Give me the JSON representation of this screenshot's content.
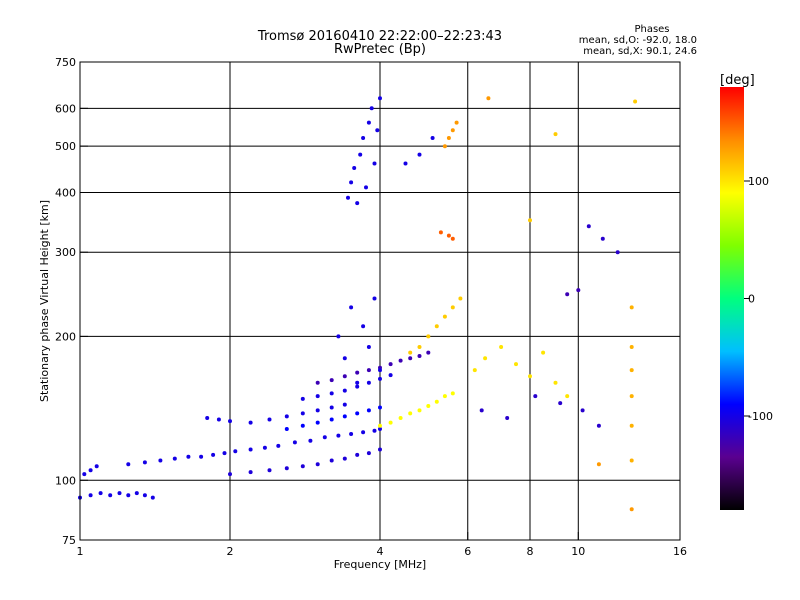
{
  "chart_data": {
    "type": "scatter",
    "title": "Tromsø 20160410 22:22:00–22:23:43",
    "subtitle": "RwPretec (Bp)",
    "stats": {
      "heading": "Phases",
      "line_o": "mean, sd,O:  -92.0, 18.0",
      "line_x": "mean, sd,X:  90.1, 24.6"
    },
    "xlabel": "Frequency [MHz]",
    "ylabel": "Stationary phase Virtual Height [km]",
    "xscale": "log",
    "yscale": "log",
    "xlim": [
      1,
      16
    ],
    "ylim": [
      75,
      750
    ],
    "xticks": [
      1,
      2,
      4,
      6,
      8,
      10,
      16
    ],
    "yticks": [
      75,
      100,
      200,
      300,
      400,
      500,
      600,
      750
    ],
    "x_gridlines": [
      2,
      4,
      6,
      8,
      10
    ],
    "y_gridlines": [
      100,
      200,
      300,
      400,
      500,
      600
    ],
    "grid": true,
    "colorbar": {
      "label": "[deg]",
      "range": [
        -180,
        180
      ],
      "ticks": [
        100,
        0,
        -100
      ],
      "colors": [
        "#000000",
        "#5a0090",
        "#0000ff",
        "#00bfff",
        "#00ff7f",
        "#7fff00",
        "#ffff00",
        "#ff8c00",
        "#ff0000"
      ]
    },
    "series": [
      {
        "x": [
          1.0,
          1.05,
          1.1,
          1.15,
          1.2,
          1.25,
          1.3,
          1.35,
          1.4
        ],
        "y": [
          92,
          93,
          94,
          93,
          94,
          93,
          94,
          93,
          92
        ],
        "phase": -100
      },
      {
        "x": [
          1.02,
          1.05,
          1.08
        ],
        "y": [
          103,
          105,
          107
        ],
        "phase": -100
      },
      {
        "x": [
          1.25,
          1.35,
          1.45,
          1.55,
          1.65,
          1.75,
          1.85,
          1.95,
          2.05,
          2.2,
          2.35,
          2.5,
          2.7,
          2.9,
          3.1,
          3.3,
          3.5,
          3.7,
          3.9,
          4.0
        ],
        "y": [
          108,
          109,
          110,
          111,
          112,
          112,
          113,
          114,
          115,
          116,
          117,
          118,
          120,
          121,
          123,
          124,
          125,
          126,
          127,
          128
        ],
        "phase": -100
      },
      {
        "x": [
          2.0,
          2.2,
          2.4,
          2.6,
          2.8,
          3.0,
          3.2,
          3.4,
          3.6,
          3.8,
          4.0
        ],
        "y": [
          103,
          104,
          105,
          106,
          107,
          108,
          110,
          111,
          113,
          114,
          116
        ],
        "phase": -105
      },
      {
        "x": [
          1.8,
          1.9,
          2.0,
          2.2,
          2.4,
          2.6,
          2.8,
          3.0,
          3.2,
          3.4
        ],
        "y": [
          135,
          134,
          133,
          132,
          134,
          136,
          138,
          140,
          142,
          144
        ],
        "phase": -100
      },
      {
        "x": [
          2.6,
          2.8,
          3.0,
          3.2,
          3.4,
          3.6,
          3.8,
          4.0
        ],
        "y": [
          128,
          130,
          132,
          134,
          136,
          138,
          140,
          142
        ],
        "phase": -90
      },
      {
        "x": [
          2.8,
          3.0,
          3.2,
          3.4,
          3.6,
          3.8,
          4.0,
          4.2
        ],
        "y": [
          148,
          150,
          152,
          154,
          157,
          160,
          163,
          166
        ],
        "phase": -100
      },
      {
        "x": [
          3.0,
          3.2,
          3.4,
          3.6,
          3.8,
          4.0,
          4.2,
          4.4,
          4.6,
          4.8,
          5.0
        ],
        "y": [
          160,
          162,
          165,
          168,
          170,
          172,
          175,
          178,
          180,
          182,
          185
        ],
        "phase": -120
      },
      {
        "x": [
          3.3,
          3.4,
          3.5,
          3.6,
          3.7,
          3.8,
          3.9,
          4.0
        ],
        "y": [
          200,
          180,
          230,
          160,
          210,
          190,
          240,
          170
        ],
        "phase": -100
      },
      {
        "x": [
          3.45,
          3.5,
          3.55,
          3.6,
          3.65,
          3.7,
          3.75,
          3.8,
          3.85,
          3.9,
          3.95,
          4.0
        ],
        "y": [
          390,
          420,
          450,
          380,
          480,
          520,
          410,
          560,
          600,
          460,
          540,
          630
        ],
        "phase": -100
      },
      {
        "x": [
          4.0,
          4.2,
          4.4,
          4.6,
          4.8,
          5.0,
          5.2,
          5.4,
          5.6
        ],
        "y": [
          130,
          132,
          135,
          138,
          140,
          143,
          146,
          150,
          152
        ],
        "phase": 90
      },
      {
        "x": [
          4.6,
          4.8,
          5.0,
          5.2,
          5.4,
          5.6,
          5.8
        ],
        "y": [
          185,
          190,
          200,
          210,
          220,
          230,
          240
        ],
        "phase": 110
      },
      {
        "x": [
          5.4,
          5.5,
          5.6,
          5.7
        ],
        "y": [
          500,
          520,
          540,
          560
        ],
        "phase": 130
      },
      {
        "x": [
          5.3,
          5.5,
          5.6
        ],
        "y": [
          330,
          325,
          320
        ],
        "phase": 150
      },
      {
        "x": [
          4.5,
          4.8,
          5.1
        ],
        "y": [
          460,
          480,
          520
        ],
        "phase": -100
      },
      {
        "x": [
          6.2,
          6.5,
          7.0,
          7.5,
          8.0,
          8.5,
          9.0,
          9.5
        ],
        "y": [
          170,
          180,
          190,
          175,
          165,
          185,
          160,
          150
        ],
        "phase": 100
      },
      {
        "x": [
          6.4,
          7.2,
          8.2,
          9.2,
          10.2,
          11.0
        ],
        "y": [
          140,
          135,
          150,
          145,
          140,
          130
        ],
        "phase": -110
      },
      {
        "x": [
          12.8,
          12.8,
          12.8,
          12.8,
          12.8,
          12.8
        ],
        "y": [
          110,
          130,
          150,
          170,
          190,
          230
        ],
        "phase": 120
      },
      {
        "x": [
          10.5,
          11.2,
          12.0
        ],
        "y": [
          340,
          320,
          300
        ],
        "phase": -110
      },
      {
        "x": [
          8.0,
          9.0,
          13.0
        ],
        "y": [
          350,
          530,
          620
        ],
        "phase": 110
      },
      {
        "x": [
          9.5,
          10.0
        ],
        "y": [
          245,
          250
        ],
        "phase": -120
      },
      {
        "x": [
          6.6,
          11.0,
          12.8
        ],
        "y": [
          630,
          108,
          87
        ],
        "phase": 130
      }
    ]
  }
}
